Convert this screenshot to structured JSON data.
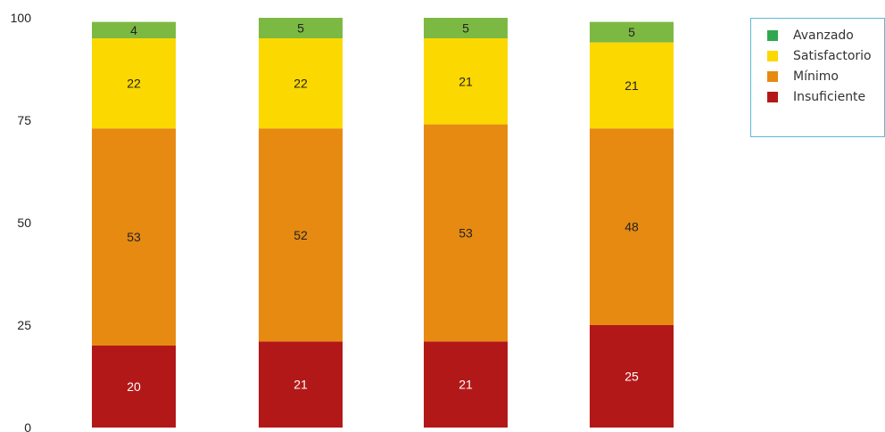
{
  "chart_data": {
    "type": "bar",
    "stacked": true,
    "categories": [
      "",
      "",
      "",
      ""
    ],
    "ylim": [
      0,
      100
    ],
    "yticks": [
      0,
      25,
      50,
      75,
      100
    ],
    "grid": false,
    "legend_position": "top-right",
    "series": [
      {
        "name": "Insuficiente",
        "color": "#b31818",
        "label_color": "#ffffff",
        "values": [
          20,
          21,
          21,
          25
        ]
      },
      {
        "name": "Mínimo",
        "color": "#e68a12",
        "label_color": "#222222",
        "values": [
          53,
          52,
          53,
          48
        ]
      },
      {
        "name": "Satisfactorio",
        "color": "#fbd800",
        "label_color": "#222222",
        "values": [
          22,
          22,
          21,
          21
        ]
      },
      {
        "name": "Avanzado",
        "color": "#7cb943",
        "label_color": "#222222",
        "values": [
          4,
          5,
          5,
          5
        ]
      }
    ]
  },
  "legend": {
    "items": [
      {
        "label": "Avanzado",
        "color": "#2fa84f"
      },
      {
        "label": "Satisfactorio",
        "color": "#fbd800"
      },
      {
        "label": "Mínimo",
        "color": "#e68a12"
      },
      {
        "label": "Insuficiente",
        "color": "#b31818"
      }
    ]
  }
}
